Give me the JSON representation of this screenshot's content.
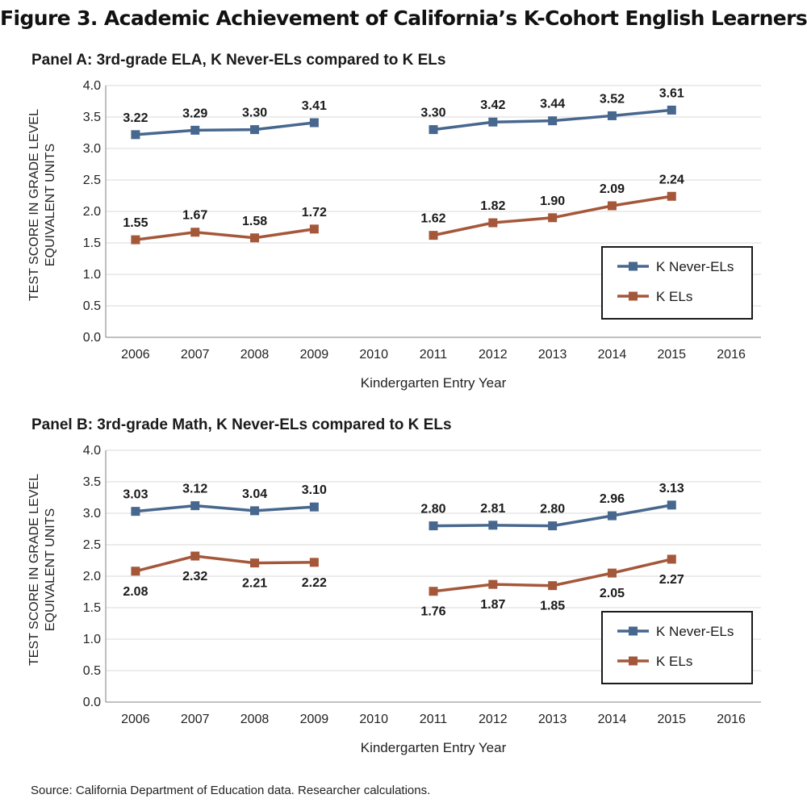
{
  "title": "Figure 3. Academic Achievement of California’s K-Cohort English Learners",
  "source": "Source: California Department of Education data. Researcher calculations.",
  "colors": {
    "never_el": "#47678e",
    "el": "#a5573a",
    "grid": "#d9d9d9",
    "axis": "#808080"
  },
  "chart_data": [
    {
      "type": "line",
      "panel_title": "Panel A: 3rd-grade ELA, K Never-ELs compared to K ELs",
      "ylabel": "TEST SCORE IN GRADE LEVEL EQUIVALENT UNITS",
      "xlabel": "Kindergarten Entry Year",
      "categories": [
        "2006",
        "2007",
        "2008",
        "2009",
        "2010",
        "2011",
        "2012",
        "2013",
        "2014",
        "2015",
        "2016"
      ],
      "ylim": [
        0,
        4
      ],
      "yticks": [
        "0.0",
        "0.5",
        "1.0",
        "1.5",
        "2.0",
        "2.5",
        "3.0",
        "3.5",
        "4.0"
      ],
      "grid": true,
      "legend_position": "bottom-right",
      "series": [
        {
          "name": "K Never-ELs",
          "color": "#47678e",
          "values": [
            3.22,
            3.29,
            3.3,
            3.41,
            null,
            3.3,
            3.42,
            3.44,
            3.52,
            3.61,
            null
          ],
          "labels": [
            "3.22",
            "3.29",
            "3.30",
            "3.41",
            "",
            "3.30",
            "3.42",
            "3.44",
            "3.52",
            "3.61",
            ""
          ],
          "label_pos": [
            "above",
            "above",
            "above",
            "above",
            "",
            "above",
            "above",
            "above",
            "above",
            "above",
            ""
          ]
        },
        {
          "name": "K ELs",
          "color": "#a5573a",
          "values": [
            1.55,
            1.67,
            1.58,
            1.72,
            null,
            1.62,
            1.82,
            1.9,
            2.09,
            2.24,
            null
          ],
          "labels": [
            "1.55",
            "1.67",
            "1.58",
            "1.72",
            "",
            "1.62",
            "1.82",
            "1.90",
            "2.09",
            "2.24",
            ""
          ],
          "label_pos": [
            "above",
            "above",
            "above",
            "above",
            "",
            "above",
            "above",
            "above",
            "above",
            "above",
            ""
          ]
        }
      ]
    },
    {
      "type": "line",
      "panel_title": "Panel B: 3rd-grade Math, K Never-ELs compared to K ELs",
      "ylabel": "TEST SCORE IN GRADE LEVEL EQUIVALENT UNITS",
      "xlabel": "Kindergarten Entry Year",
      "categories": [
        "2006",
        "2007",
        "2008",
        "2009",
        "2010",
        "2011",
        "2012",
        "2013",
        "2014",
        "2015",
        "2016"
      ],
      "ylim": [
        0,
        4
      ],
      "yticks": [
        "0.0",
        "0.5",
        "1.0",
        "1.5",
        "2.0",
        "2.5",
        "3.0",
        "3.5",
        "4.0"
      ],
      "grid": true,
      "legend_position": "bottom-right",
      "series": [
        {
          "name": "K Never-ELs",
          "color": "#47678e",
          "values": [
            3.03,
            3.12,
            3.04,
            3.1,
            null,
            2.8,
            2.81,
            2.8,
            2.96,
            3.13,
            null
          ],
          "labels": [
            "3.03",
            "3.12",
            "3.04",
            "3.10",
            "",
            "2.80",
            "2.81",
            "2.80",
            "2.96",
            "3.13",
            ""
          ],
          "label_pos": [
            "above",
            "above",
            "above",
            "above",
            "",
            "above",
            "above",
            "above",
            "above",
            "above",
            ""
          ]
        },
        {
          "name": "K ELs",
          "color": "#a5573a",
          "values": [
            2.08,
            2.32,
            2.21,
            2.22,
            null,
            1.76,
            1.87,
            1.85,
            2.05,
            2.27,
            null
          ],
          "labels": [
            "2.08",
            "2.32",
            "2.21",
            "2.22",
            "",
            "1.76",
            "1.87",
            "1.85",
            "2.05",
            "2.27",
            ""
          ],
          "label_pos": [
            "below",
            "below",
            "below",
            "below",
            "",
            "below",
            "below",
            "below",
            "below",
            "below",
            ""
          ]
        }
      ]
    }
  ]
}
